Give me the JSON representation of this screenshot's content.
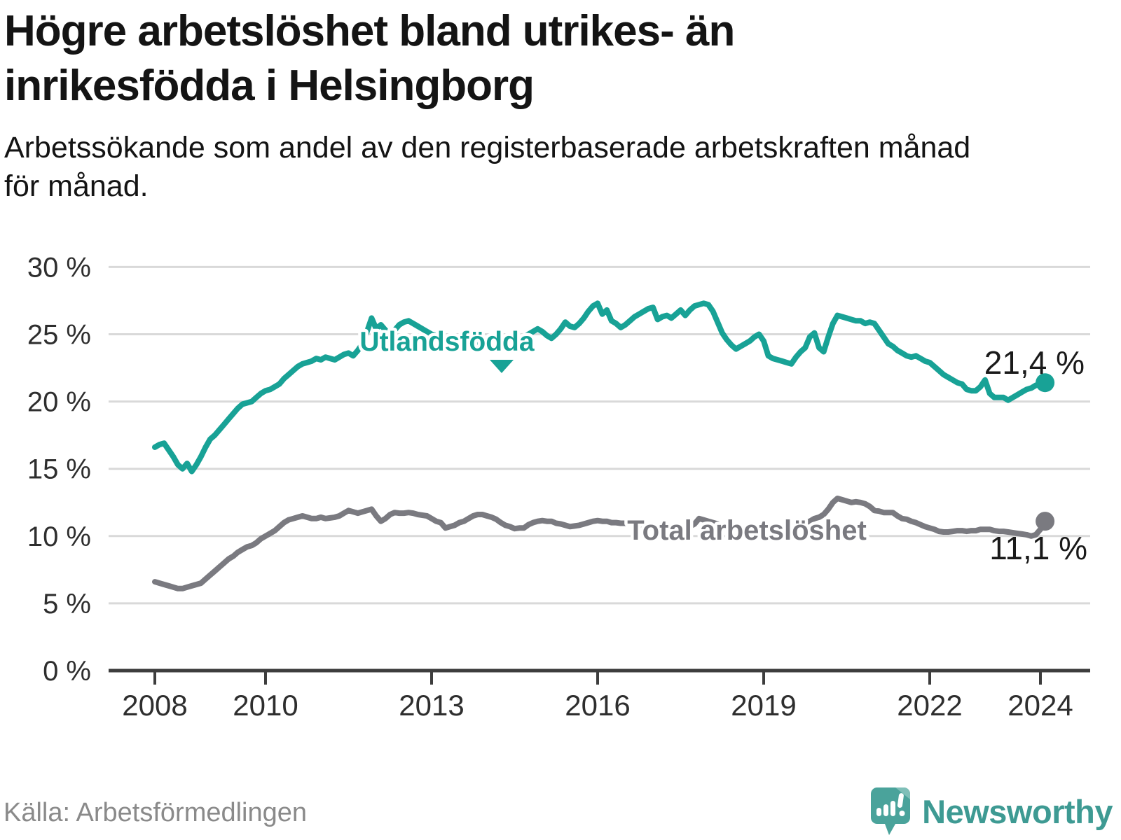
{
  "header": {
    "title_line1": "Högre arbetslöshet bland utrikes- än",
    "title_line2": "inrikesfödda i Helsingborg",
    "subtitle_line1": "Arbetssökande som andel av den registerbaserade arbetskraften månad",
    "subtitle_line2": "för månad."
  },
  "footer": {
    "source": "Källa: Arbetsförmedlingen",
    "brand": "Newsworthy"
  },
  "colors": {
    "accent_teal": "#18A296",
    "series_gray": "#7A7A80",
    "grid": "#D9D9D9",
    "axis": "#3D3D3D",
    "tick_text": "#2E2E2E",
    "value_label_text": "#1a1a1a",
    "source_text": "#8a8a8a",
    "brand_teal": "#3E9A93",
    "logo_bubble": "#4AA39B",
    "logo_fold": "#7FBFB8"
  },
  "chart_data": {
    "type": "line",
    "title": "Högre arbetslöshet bland utrikes- än inrikesfödda i Helsingborg",
    "subtitle": "Arbetssökande som andel av den registerbaserade arbetskraften månad för månad.",
    "xlabel": "",
    "ylabel": "",
    "unit": "%",
    "frequency": "monthly",
    "x_start": "2008-01",
    "x_end": "2024-02",
    "ylim": [
      0,
      30
    ],
    "grid": "horizontal",
    "legend_position": "inline-labels",
    "y_ticks": [
      0,
      5,
      10,
      15,
      20,
      25,
      30
    ],
    "y_tick_labels": [
      "0 %",
      "5 %",
      "10 %",
      "15 %",
      "20 %",
      "25 %",
      "30 %"
    ],
    "x_tick_years": [
      2008,
      2010,
      2013,
      2016,
      2019,
      2022,
      2024
    ],
    "series": [
      {
        "name": "Utlandsfödda",
        "color": "#18A296",
        "end_value_label": "21,4 %",
        "end_value": 21.4,
        "values": [
          16.6,
          16.8,
          16.9,
          16.4,
          15.9,
          15.3,
          15.0,
          15.4,
          14.8,
          15.3,
          15.9,
          16.6,
          17.2,
          17.5,
          17.9,
          18.3,
          18.7,
          19.1,
          19.5,
          19.8,
          19.9,
          20.0,
          20.3,
          20.6,
          20.8,
          20.9,
          21.1,
          21.3,
          21.7,
          22.0,
          22.3,
          22.6,
          22.8,
          22.9,
          23.0,
          23.2,
          23.1,
          23.3,
          23.2,
          23.1,
          23.3,
          23.5,
          23.6,
          23.4,
          23.8,
          24.3,
          25.2,
          26.2,
          25.4,
          25.7,
          25.3,
          25.0,
          25.3,
          25.7,
          25.9,
          26.0,
          25.8,
          25.6,
          25.4,
          25.2,
          25.0,
          24.9,
          24.8,
          24.7,
          24.6,
          24.6,
          24.5,
          24.4,
          24.3,
          24.2,
          24.2,
          24.1,
          24.0,
          23.9,
          23.9,
          24.0,
          24.1,
          24.2,
          24.4,
          24.6,
          24.8,
          25.0,
          25.2,
          25.4,
          25.2,
          24.9,
          24.7,
          25.0,
          25.4,
          25.9,
          25.6,
          25.5,
          25.8,
          26.2,
          26.7,
          27.1,
          27.3,
          26.5,
          26.8,
          26.0,
          25.8,
          25.5,
          25.7,
          26.0,
          26.3,
          26.5,
          26.7,
          26.9,
          27.0,
          26.1,
          26.3,
          26.4,
          26.2,
          26.5,
          26.8,
          26.4,
          26.8,
          27.1,
          27.2,
          27.3,
          27.2,
          26.7,
          25.9,
          25.1,
          24.6,
          24.2,
          23.9,
          24.1,
          24.3,
          24.5,
          24.8,
          25.0,
          24.5,
          23.4,
          23.2,
          23.1,
          23.0,
          22.9,
          22.8,
          23.3,
          23.7,
          24.0,
          24.8,
          25.1,
          24.0,
          23.7,
          24.8,
          25.8,
          26.4,
          26.3,
          26.2,
          26.1,
          26.0,
          26.0,
          25.8,
          25.9,
          25.8,
          25.3,
          24.8,
          24.3,
          24.1,
          23.8,
          23.6,
          23.4,
          23.3,
          23.4,
          23.2,
          23.0,
          22.9,
          22.6,
          22.3,
          22.0,
          21.8,
          21.6,
          21.4,
          21.3,
          20.9,
          20.8,
          20.8,
          21.1,
          21.6,
          20.6,
          20.3,
          20.3,
          20.3,
          20.1,
          20.3,
          20.5,
          20.7,
          20.9,
          21.0,
          21.2,
          21.3,
          21.4
        ]
      },
      {
        "name": "Total arbetslöshet",
        "color": "#7A7A80",
        "end_value_label": "11,1 %",
        "end_value": 11.1,
        "values": [
          6.6,
          6.5,
          6.4,
          6.3,
          6.2,
          6.1,
          6.1,
          6.2,
          6.3,
          6.4,
          6.5,
          6.8,
          7.1,
          7.4,
          7.7,
          8.0,
          8.3,
          8.5,
          8.8,
          9.0,
          9.2,
          9.3,
          9.5,
          9.8,
          10.0,
          10.2,
          10.4,
          10.7,
          11.0,
          11.2,
          11.3,
          11.4,
          11.5,
          11.4,
          11.3,
          11.3,
          11.4,
          11.3,
          11.35,
          11.4,
          11.5,
          11.7,
          11.9,
          11.8,
          11.7,
          11.8,
          11.9,
          12.0,
          11.5,
          11.1,
          11.3,
          11.6,
          11.75,
          11.7,
          11.7,
          11.75,
          11.7,
          11.6,
          11.55,
          11.5,
          11.3,
          11.1,
          11.0,
          10.6,
          10.7,
          10.8,
          11.0,
          11.1,
          11.3,
          11.5,
          11.6,
          11.6,
          11.5,
          11.4,
          11.25,
          11.0,
          10.8,
          10.7,
          10.55,
          10.6,
          10.6,
          10.85,
          11.0,
          11.1,
          11.15,
          11.1,
          11.1,
          10.95,
          10.9,
          10.8,
          10.7,
          10.75,
          10.8,
          10.9,
          11.0,
          11.1,
          11.15,
          11.1,
          11.1,
          11.0,
          11.0,
          10.95,
          10.95,
          10.9,
          10.9,
          10.8,
          10.7,
          10.65,
          10.6,
          10.55,
          10.5,
          10.45,
          10.4,
          10.45,
          10.5,
          10.6,
          10.7,
          10.9,
          11.3,
          11.2,
          11.1,
          11.0,
          10.9,
          10.7,
          10.6,
          10.5,
          10.4,
          10.4,
          10.5,
          10.5,
          10.6,
          10.6,
          10.6,
          10.5,
          10.5,
          10.4,
          10.5,
          10.6,
          10.7,
          10.8,
          10.9,
          11.0,
          11.1,
          11.3,
          11.4,
          11.6,
          12.0,
          12.5,
          12.8,
          12.7,
          12.6,
          12.5,
          12.55,
          12.5,
          12.4,
          12.2,
          11.9,
          11.85,
          11.75,
          11.75,
          11.75,
          11.5,
          11.3,
          11.25,
          11.1,
          11.0,
          10.85,
          10.7,
          10.6,
          10.5,
          10.35,
          10.3,
          10.3,
          10.35,
          10.4,
          10.4,
          10.35,
          10.4,
          10.4,
          10.5,
          10.5,
          10.5,
          10.4,
          10.35,
          10.35,
          10.3,
          10.25,
          10.2,
          10.15,
          10.1,
          10.0,
          10.1,
          10.5,
          11.1
        ]
      }
    ]
  }
}
